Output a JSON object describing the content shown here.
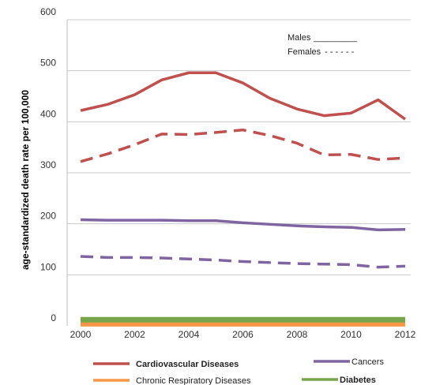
{
  "chart_data": {
    "type": "line",
    "ylabel": "age-standardized death rate per 100,000",
    "xlabel": "",
    "title": "",
    "x": [
      2000,
      2001,
      2002,
      2003,
      2004,
      2005,
      2006,
      2007,
      2008,
      2009,
      2010,
      2011,
      2012
    ],
    "x_tick_labels": [
      "2000",
      "2002",
      "2004",
      "2006",
      "2008",
      "2010",
      "2012"
    ],
    "y_tick_labels": [
      "0",
      "100",
      "200",
      "300",
      "400",
      "500",
      "600"
    ],
    "ylim": [
      0,
      600
    ],
    "grid": "horizontal",
    "sex_key": {
      "males_label": "Males",
      "males_marker": "_________",
      "females_label": "Females",
      "females_marker": "- - - - - -"
    },
    "legend_position": "bottom",
    "series": [
      {
        "name": "Cardiovascular Diseases",
        "sex": "Males",
        "color": "#c0504d",
        "dash": "solid",
        "values": [
          422,
          434,
          453,
          482,
          496,
          496,
          476,
          446,
          425,
          412,
          417,
          443,
          405
        ]
      },
      {
        "name": "Cardiovascular Diseases",
        "sex": "Females",
        "color": "#c0504d",
        "dash": "dashed",
        "values": [
          322,
          337,
          355,
          376,
          375,
          379,
          384,
          373,
          358,
          335,
          336,
          326,
          329
        ]
      },
      {
        "name": "Cancers",
        "sex": "Males",
        "color": "#8064a2",
        "dash": "solid",
        "values": [
          208,
          207,
          207,
          207,
          206,
          206,
          202,
          199,
          196,
          194,
          193,
          188,
          189
        ]
      },
      {
        "name": "Cancers",
        "sex": "Females",
        "color": "#8064a2",
        "dash": "dashed",
        "values": [
          136,
          134,
          134,
          133,
          131,
          129,
          126,
          124,
          122,
          121,
          120,
          115,
          117
        ]
      },
      {
        "name": "Chronic Respiratory Diseases",
        "sex": "Males",
        "color": "#f79646",
        "dash": "solid",
        "values": [
          4,
          4,
          4,
          4,
          4,
          4,
          4,
          4,
          4,
          4,
          4,
          4,
          4
        ]
      },
      {
        "name": "Diabetes",
        "sex": "Males",
        "color": "#77a64a",
        "dash": "solid",
        "values": [
          12,
          12,
          12,
          12,
          12,
          12,
          12,
          12,
          12,
          12,
          12,
          12,
          12
        ]
      }
    ],
    "legend": [
      {
        "label": "Cardiovascular Diseases",
        "color": "#c0504d",
        "bold": true
      },
      {
        "label": "Cancers",
        "color": "#8064a2",
        "bold": false
      },
      {
        "label": "Chronic Respiratory Diseases",
        "color": "#f79646",
        "bold": false
      },
      {
        "label": "Diabetes",
        "color": "#77a64a",
        "bold": true
      }
    ]
  }
}
